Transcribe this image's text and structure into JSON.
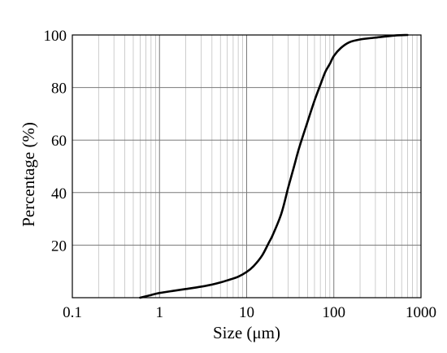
{
  "chart_data": {
    "type": "line",
    "title": "",
    "xlabel": "Size (μm)",
    "ylabel": "Percentage (%)",
    "xscale": "log",
    "xlim": [
      0.1,
      1000
    ],
    "ylim": [
      0,
      100
    ],
    "grid": true,
    "legend": "none",
    "x_ticks": [
      {
        "value": 0.1,
        "label": "0.1"
      },
      {
        "value": 1,
        "label": "1"
      },
      {
        "value": 10,
        "label": "10"
      },
      {
        "value": 100,
        "label": "100"
      },
      {
        "value": 1000,
        "label": "1000"
      }
    ],
    "y_ticks": [
      {
        "value": 20,
        "label": "20"
      },
      {
        "value": 40,
        "label": "40"
      },
      {
        "value": 60,
        "label": "60"
      },
      {
        "value": 80,
        "label": "80"
      },
      {
        "value": 100,
        "label": "100"
      }
    ],
    "series": [
      {
        "color": "#000000",
        "x": [
          0.6,
          0.8,
          1,
          1.5,
          2,
          3,
          4,
          5,
          6,
          8,
          10,
          12,
          15,
          18,
          20,
          25,
          30,
          35,
          40,
          50,
          60,
          70,
          80,
          90,
          100,
          120,
          150,
          200,
          300,
          500,
          700
        ],
        "y": [
          0,
          1,
          1.8,
          2.7,
          3.3,
          4.2,
          5,
          5.8,
          6.6,
          8,
          9.8,
          12,
          16,
          21,
          24,
          32,
          42,
          50,
          57,
          67,
          75,
          81,
          86,
          89,
          92,
          95,
          97.2,
          98.3,
          99,
          99.8,
          100
        ]
      }
    ]
  }
}
